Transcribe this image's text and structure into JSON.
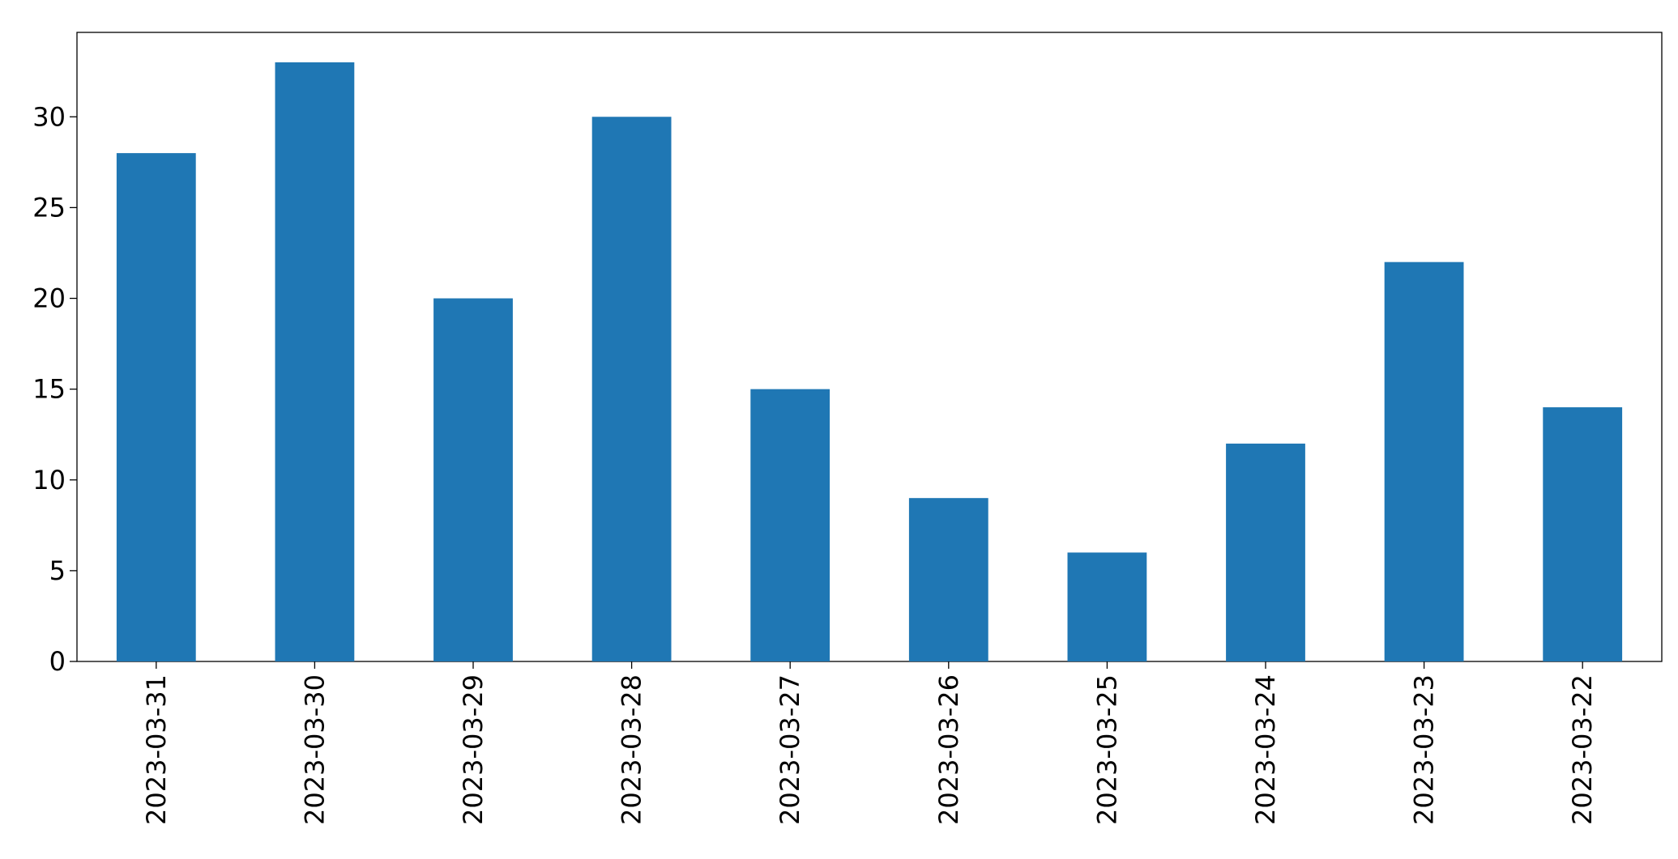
{
  "chart_data": {
    "type": "bar",
    "categories": [
      "2023-03-31",
      "2023-03-30",
      "2023-03-29",
      "2023-03-28",
      "2023-03-27",
      "2023-03-26",
      "2023-03-25",
      "2023-03-24",
      "2023-03-23",
      "2023-03-22"
    ],
    "values": [
      28,
      33,
      20,
      30,
      15,
      9,
      6,
      12,
      22,
      14
    ],
    "color": "#1f77b4",
    "ylim": [
      0,
      34.65
    ],
    "yticks": [
      0,
      5,
      10,
      15,
      20,
      25,
      30
    ],
    "grid": false
  }
}
